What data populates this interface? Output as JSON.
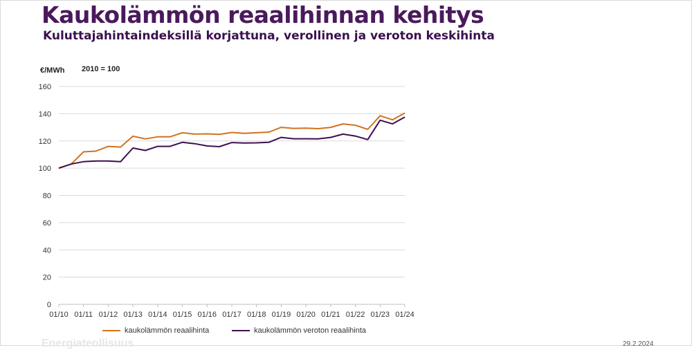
{
  "header": {
    "title": "Kaukolämmön reaalihinnan kehitys",
    "subtitle": "Kuluttajahintaindeksillä korjattuna, verollinen ja veroton keskihinta"
  },
  "notes": {
    "unit_label": "€/MWh",
    "base_label": "2010 = 100"
  },
  "footer": {
    "logo_text": "Energiateollisuus",
    "date": "29.2.2024"
  },
  "colors": {
    "series1": "#d0731f",
    "series2": "#3d0f4f",
    "grid": "#d9d9d9",
    "axis": "#bfbfbf",
    "title": "#4a1a5c"
  },
  "chart_data": {
    "type": "line",
    "xlabel": "",
    "ylabel": "€/MWh",
    "ylim": [
      0,
      160
    ],
    "yticks": [
      0,
      20,
      40,
      60,
      80,
      100,
      120,
      140,
      160
    ],
    "xtick_labels": [
      "01/10",
      "01/11",
      "01/12",
      "01/13",
      "01/14",
      "01/15",
      "01/16",
      "01/17",
      "01/18",
      "01/19",
      "01/20",
      "01/21",
      "01/22",
      "01/23",
      "01/24"
    ],
    "x": [
      "01/10",
      "07/10",
      "01/11",
      "07/11",
      "01/12",
      "07/12",
      "01/13",
      "07/13",
      "01/14",
      "07/14",
      "01/15",
      "07/15",
      "01/16",
      "07/16",
      "01/17",
      "07/17",
      "01/18",
      "07/18",
      "01/19",
      "07/19",
      "01/20",
      "07/20",
      "01/21",
      "07/21",
      "01/22",
      "07/22",
      "01/23",
      "07/23",
      "01/24"
    ],
    "grid": true,
    "legend_position": "bottom",
    "series": [
      {
        "name": "kaukolämmön reaalihinta",
        "values": [
          100,
          103,
          112,
          112.5,
          116,
          115.5,
          123.5,
          121.5,
          123,
          123,
          126,
          125,
          125.2,
          124.8,
          126.2,
          125.6,
          126,
          126.5,
          130,
          129.2,
          129.4,
          129,
          130,
          132.5,
          131.5,
          128.5,
          138.5,
          135.5,
          140.5
        ]
      },
      {
        "name": "kaukolämmön veroton reaalihinta",
        "values": [
          100,
          103,
          104.8,
          105.3,
          105.3,
          104.8,
          114.8,
          113,
          116,
          116,
          119,
          118,
          116.3,
          115.8,
          118.8,
          118.5,
          118.6,
          119,
          122.6,
          121.6,
          121.6,
          121.5,
          122.6,
          125,
          123.6,
          121,
          135.2,
          132.5,
          137.5
        ]
      }
    ]
  }
}
